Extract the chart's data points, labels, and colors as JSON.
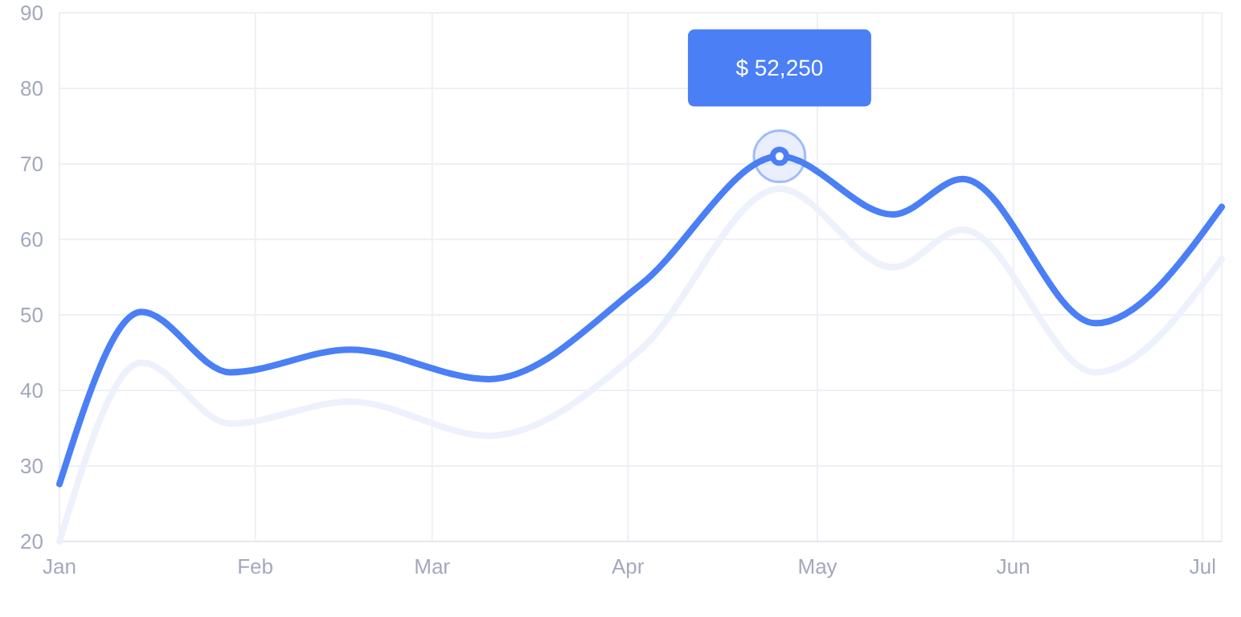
{
  "chart_data": {
    "type": "line",
    "x": [
      "--01-01",
      "--01-14",
      "--01-28",
      "--02-16",
      "--03-10",
      "--04-03",
      "--04-25",
      "--05-13",
      "--05-24",
      "--06-14",
      "--07-04"
    ],
    "series": [
      {
        "color": "#edf1fc",
        "values": [
          20,
          43.7,
          35.6,
          38.5,
          34,
          45.4,
          66.7,
          56.3,
          61.3,
          42.4,
          57.4
        ]
      },
      {
        "color": "#4a7ff5",
        "values": [
          27.6,
          50.4,
          42.4,
          45.4,
          41.5,
          54,
          71,
          63.3,
          68,
          48.9,
          64.3
        ]
      }
    ],
    "xlim": [
      "--01-01",
      "--07-04"
    ],
    "ylim": [
      20,
      90
    ],
    "yticks": [
      20,
      30,
      40,
      50,
      60,
      70,
      80,
      90
    ],
    "xticks": [
      {
        "value": "--01-01",
        "label": "Jan"
      },
      {
        "value": "--02-01",
        "label": "Feb"
      },
      {
        "value": "--03-01",
        "label": "Mar"
      },
      {
        "value": "--04-01",
        "label": "Apr"
      },
      {
        "value": "--05-01",
        "label": "May"
      },
      {
        "value": "--06-01",
        "label": "Jun"
      },
      {
        "value": "--07-01",
        "label": "Jul"
      }
    ],
    "grid": true,
    "line_style": "solid",
    "marker": "none",
    "annotations": [
      "$ 52,250"
    ]
  }
}
